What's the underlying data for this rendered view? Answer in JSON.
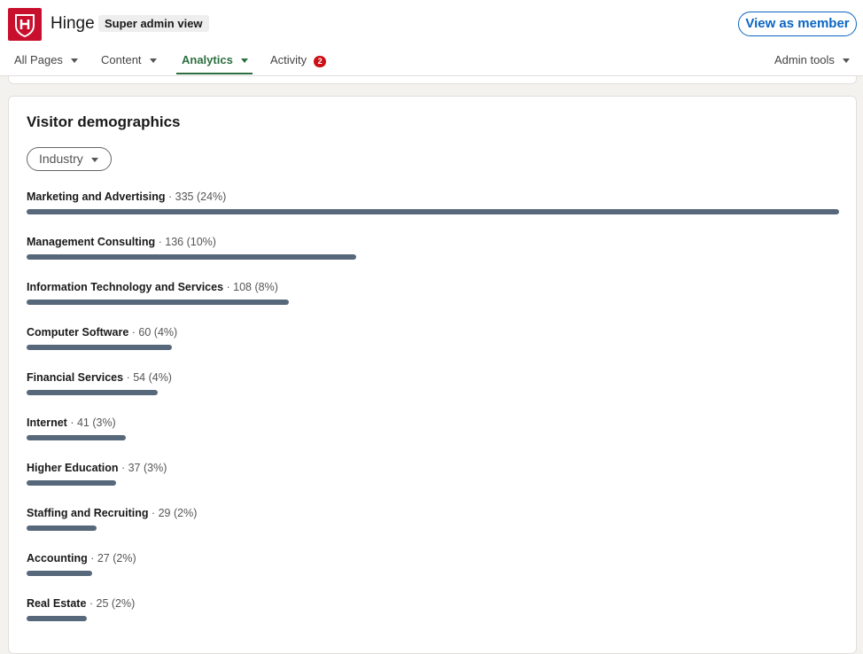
{
  "header": {
    "org_name": "Hinge",
    "admin_badge": "Super admin view",
    "view_as_member": "View as member"
  },
  "nav": {
    "all_pages": "All Pages",
    "content": "Content",
    "analytics": "Analytics",
    "activity": "Activity",
    "activity_count": "2",
    "admin_tools": "Admin tools"
  },
  "demographics": {
    "title": "Visitor demographics",
    "filter": "Industry",
    "rows": [
      {
        "name": "Marketing and Advertising",
        "stats": " · 335 (24%)",
        "count": 335
      },
      {
        "name": "Management Consulting",
        "stats": " · 136 (10%)",
        "count": 136
      },
      {
        "name": "Information Technology and Services",
        "stats": " · 108 (8%)",
        "count": 108
      },
      {
        "name": "Computer Software",
        "stats": " · 60 (4%)",
        "count": 60
      },
      {
        "name": "Financial Services",
        "stats": " · 54 (4%)",
        "count": 54
      },
      {
        "name": "Internet",
        "stats": " · 41 (3%)",
        "count": 41
      },
      {
        "name": "Higher Education",
        "stats": " · 37 (3%)",
        "count": 37
      },
      {
        "name": "Staffing and Recruiting",
        "stats": " · 29 (2%)",
        "count": 29
      },
      {
        "name": "Accounting",
        "stats": " · 27 (2%)",
        "count": 27
      },
      {
        "name": "Real Estate",
        "stats": " · 25 (2%)",
        "count": 25
      }
    ]
  },
  "colors": {
    "bar": "#56687a",
    "accent": "#0a66c2",
    "active_tab": "#2c6e3f",
    "logo": "#c8102e"
  }
}
